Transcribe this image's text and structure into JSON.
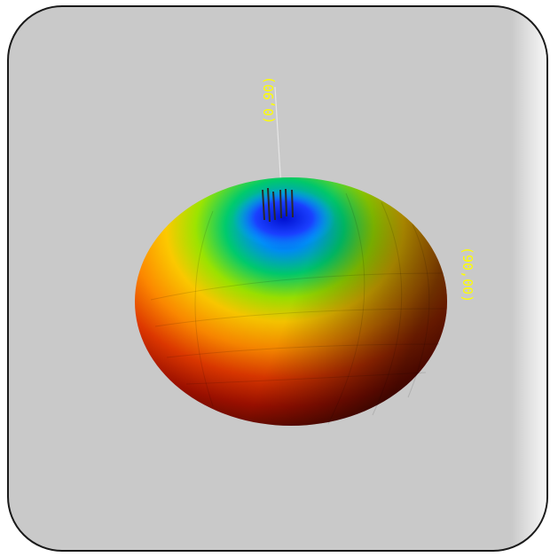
{
  "axis_labels": {
    "vertical": "(0,90)",
    "horizontal": "(90,00)"
  },
  "colors": {
    "background": "#c9c9c9",
    "frame_border": "#1a1a1a",
    "label_color": "#ffff00",
    "axis_line": "#e6e6e6",
    "surface_gradient": [
      "#1a2cff",
      "#00b8ff",
      "#00e060",
      "#c8f000",
      "#ffb000",
      "#e84800",
      "#b01000",
      "#3a0800"
    ]
  },
  "shape": "toroidal-radiation-pattern"
}
